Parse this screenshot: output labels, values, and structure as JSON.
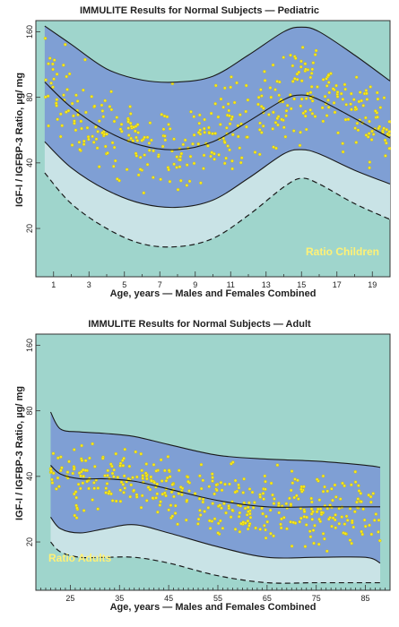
{
  "chart_data": [
    {
      "id": "pediatric",
      "type": "scatter",
      "title": "IMMULITE Results for Normal Subjects — Pediatric",
      "xlabel": "Age, years — Males and Females Combined",
      "ylabel": "IGF-I / IGFBP-3 Ratio, µg/ mg",
      "annotation": "Ratio Children",
      "scale": "log",
      "xlim": [
        0,
        20
      ],
      "ylim": [
        12,
        180
      ],
      "x_ticks": [
        1,
        3,
        5,
        7,
        9,
        11,
        13,
        15,
        17,
        19
      ],
      "y_ticks": [
        20,
        40,
        80,
        160
      ],
      "colors": {
        "background": "#9fd5cc",
        "outer_band": "#c9e3e6",
        "inner_band": "#7f9fd4",
        "points": "#f7e81f"
      },
      "curves": {
        "upper": {
          "x": [
            0.5,
            2,
            4,
            6,
            8,
            10,
            12,
            14,
            15,
            16,
            18,
            20
          ],
          "y": [
            170,
            140,
            108,
            96,
            94,
            100,
            125,
            160,
            168,
            160,
            125,
            95
          ]
        },
        "median": {
          "x": [
            0.5,
            2,
            4,
            6,
            8,
            10,
            12,
            14,
            15,
            16,
            18,
            20
          ],
          "y": [
            94,
            72,
            56,
            48,
            46,
            50,
            62,
            78,
            82,
            78,
            64,
            52
          ]
        },
        "lower": {
          "x": [
            0.5,
            2,
            4,
            6,
            8,
            10,
            12,
            14,
            15,
            16,
            18,
            20
          ],
          "y": [
            50,
            38,
            30,
            26,
            25,
            27,
            34,
            44,
            46,
            44,
            37,
            32
          ]
        },
        "p2_5": {
          "x": [
            0.5,
            2,
            4,
            6,
            8,
            10,
            12,
            14,
            15,
            16,
            18,
            20
          ],
          "y": [
            36,
            26,
            20,
            17,
            16.5,
            18,
            23,
            31,
            34,
            32,
            26,
            22
          ]
        }
      }
    },
    {
      "id": "adult",
      "type": "scatter",
      "title": "IMMULITE Results for Normal Subjects — Adult",
      "xlabel": "Age, years — Males and Females Combined",
      "ylabel": "IGF-I / IGFBP-3 Ratio, µg/ mg",
      "annotation": "Ratio Adults",
      "scale": "log",
      "xlim": [
        18,
        90
      ],
      "ylim": [
        12,
        180
      ],
      "x_ticks": [
        25,
        35,
        45,
        55,
        65,
        75,
        85
      ],
      "y_ticks": [
        20,
        40,
        80,
        160
      ],
      "colors": {
        "background": "#9fd5cc",
        "outer_band": "#c9e3e6",
        "inner_band": "#7f9fd4",
        "points": "#f7e81f"
      },
      "curves": {
        "upper": {
          "x": [
            21,
            23,
            27,
            32,
            38,
            45,
            55,
            65,
            75,
            85,
            88
          ],
          "y": [
            79,
            66,
            64,
            63,
            61,
            56,
            50,
            48,
            47,
            45,
            44
          ]
        },
        "median": {
          "x": [
            21,
            23,
            27,
            32,
            38,
            45,
            55,
            65,
            75,
            85,
            88
          ],
          "y": [
            45,
            41,
            39,
            39,
            38,
            35,
            31,
            29,
            29,
            29,
            29
          ]
        },
        "lower": {
          "x": [
            21,
            23,
            27,
            32,
            38,
            45,
            55,
            65,
            75,
            85,
            88
          ],
          "y": [
            26,
            23,
            22,
            23,
            24,
            22,
            19,
            17,
            17,
            17,
            16
          ]
        },
        "p2_5": {
          "x": [
            21,
            23,
            27,
            32,
            38,
            45,
            55,
            65,
            75,
            85,
            88
          ],
          "y": [
            20,
            18,
            17,
            17,
            17,
            16,
            14,
            13,
            13,
            13,
            13
          ]
        }
      }
    }
  ]
}
